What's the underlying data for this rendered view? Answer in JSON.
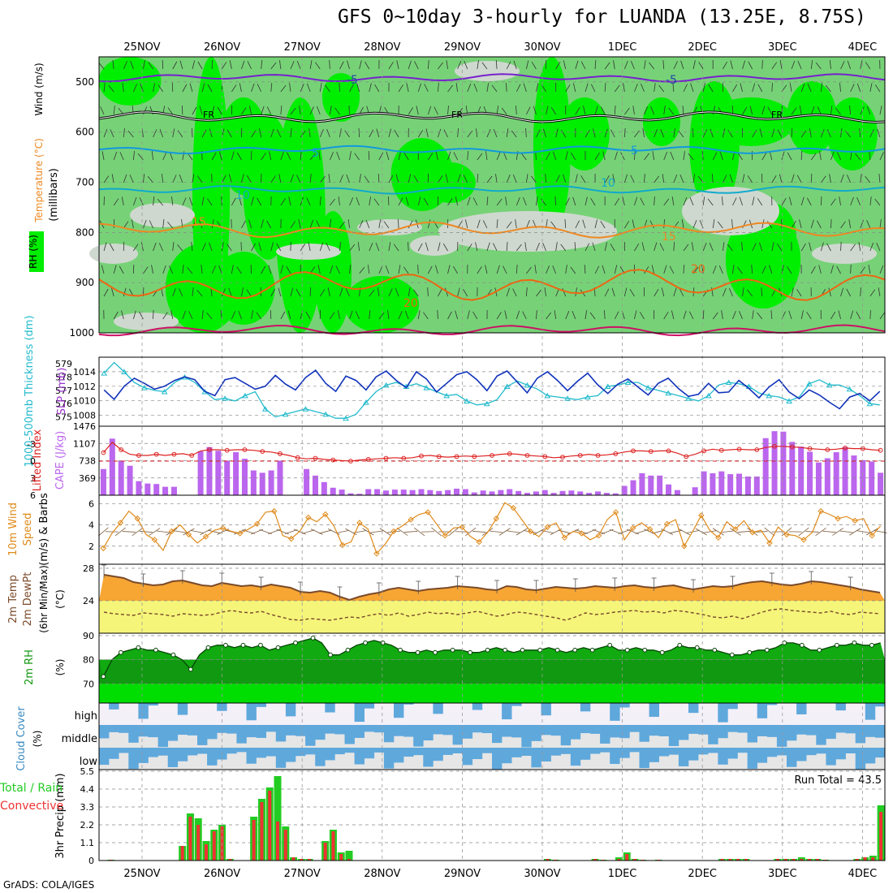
{
  "title": "GFS 0~10day 3-hourly for LUANDA (13.25E, 8.75S)",
  "credit": "GrADS: COLA/IGES",
  "dates": [
    "25NOV",
    "26NOV",
    "27NOV",
    "28NOV",
    "29NOV",
    "30NOV",
    "1DEC",
    "2DEC",
    "3DEC",
    "4DEC"
  ],
  "colors": {
    "rh_light": "#77d277",
    "rh_bright": "#00ee00",
    "rh_dark": "#33aa33",
    "rh_dry": "#cfd8cf",
    "grid": "#999999",
    "thickness": "#22bbcc",
    "slp": "#1133bb",
    "lifted": "#dd2222",
    "cape": "#bb66ee",
    "wind": "#e08a1a",
    "temp": "#f7a634",
    "dewpt": "#f5f57a",
    "rh2m": "#119911",
    "cloud": "#5fa8dc",
    "cloud_bg": "#e6e6e6",
    "precip_total": "#22cc22",
    "precip_conv": "#ee3333"
  },
  "chart_data": [
    {
      "type": "heatmap",
      "name": "upper_air",
      "ylabel": "(millibars)",
      "legend_labels": [
        "RH (%)",
        "Temperature (°C)",
        "Wind (m/s)"
      ],
      "y_ticks": [
        500,
        600,
        700,
        800,
        900,
        1000
      ],
      "ylim": [
        1000,
        450
      ],
      "contour_labels": [
        {
          "text": "-5",
          "level": "500"
        },
        {
          "text": "-5",
          "level": "500"
        },
        {
          "text": "FR",
          "level": "freezing"
        },
        {
          "text": "FR",
          "level": "freezing"
        },
        {
          "text": "FR",
          "level": "freezing"
        },
        {
          "text": "5",
          "level": "640"
        },
        {
          "text": "5",
          "level": "640"
        },
        {
          "text": "10",
          "level": "710"
        },
        {
          "text": "10",
          "level": "710"
        },
        {
          "text": "15",
          "level": "785"
        },
        {
          "text": "15",
          "level": "785"
        },
        {
          "text": "20",
          "level": "900"
        },
        {
          "text": "20",
          "level": "900"
        }
      ]
    },
    {
      "type": "line",
      "name": "thickness_slp",
      "ylabel_left": "1000-500mb Thickness (dm)",
      "ylabel_right": "SLP (mb)",
      "thickness_ticks": [
        575,
        576,
        577,
        578,
        579
      ],
      "slp_ticks": [
        1008,
        1010,
        1012,
        1014
      ],
      "series": [
        {
          "values": [
            578.3,
            579.1,
            578.4,
            577.6,
            577.2,
            577.0,
            576.9,
            577.6,
            578.0,
            577.6,
            576.9,
            576.3,
            576.4,
            576.2,
            576.6,
            576.9,
            575.6,
            575.0,
            575.2,
            575.4,
            575.6,
            575.4,
            575.2,
            574.9,
            574.9,
            575.2,
            576.1,
            576.9,
            577.4,
            577.6,
            577.3,
            577.5,
            577.2,
            576.9,
            576.6,
            576.7,
            576.2,
            575.9,
            576.0,
            576.3,
            577.3,
            577.7,
            577.4,
            577.1,
            576.6,
            576.5,
            576.4,
            576.3,
            576.5,
            576.6,
            577.3,
            577.4,
            577.6,
            577.6,
            577.2,
            577.0,
            576.8,
            576.6,
            576.4,
            576.2,
            576.6,
            577.4,
            577.6,
            577.5,
            577.3,
            576.8,
            576.6,
            576.5,
            576.2,
            576.5,
            577.5,
            577.8,
            577.4,
            577.4,
            577.1,
            576.6,
            576.0,
            575.9
          ]
        },
        {
          "values": [
            1011.5,
            1010.2,
            1012.0,
            1013.1,
            1012.4,
            1011.6,
            1012.0,
            1012.8,
            1013.3,
            1012.9,
            1011.3,
            1010.7,
            1012.9,
            1013.2,
            1012.4,
            1011.6,
            1012.0,
            1013.5,
            1012.3,
            1011.5,
            1013.2,
            1014.2,
            1012.4,
            1011.3,
            1013.4,
            1012.8,
            1011.5,
            1013.3,
            1014.1,
            1012.8,
            1011.8,
            1014.0,
            1013.0,
            1011.2,
            1012.4,
            1013.6,
            1014.0,
            1012.9,
            1011.4,
            1013.4,
            1014.1,
            1012.6,
            1011.1,
            1013.1,
            1014.0,
            1012.8,
            1011.4,
            1012.7,
            1013.8,
            1012.2,
            1011.0,
            1012.3,
            1013.0,
            1011.9,
            1010.8,
            1012.4,
            1013.1,
            1011.7,
            1010.6,
            1010.9,
            1012.4,
            1011.1,
            1011.2,
            1012.8,
            1011.7,
            1010.4,
            1011.9,
            1012.9,
            1011.2,
            1010.3,
            1011.5,
            1010.8,
            1009.8,
            1008.9,
            1010.5,
            1011.0,
            1010.0,
            1011.3
          ]
        }
      ]
    },
    {
      "type": "bar",
      "name": "lifted_cape",
      "ylabel_left": "Lifted Index",
      "ylabel_right": "CAPE (J/kg)",
      "li_ticks": [
        "-3",
        "0",
        "3",
        "6"
      ],
      "cape_ticks": [
        "369",
        "738",
        "1107",
        "1476"
      ],
      "cape": [
        560,
        1210,
        740,
        630,
        300,
        250,
        240,
        180,
        180,
        0,
        0,
        940,
        1030,
        950,
        740,
        920,
        780,
        530,
        480,
        530,
        740,
        0,
        0,
        560,
        420,
        280,
        160,
        120,
        40,
        30,
        130,
        130,
        100,
        120,
        120,
        110,
        130,
        110,
        90,
        110,
        140,
        130,
        60,
        100,
        80,
        110,
        130,
        90,
        50,
        80,
        110,
        50,
        90,
        100,
        80,
        50,
        80,
        50,
        40,
        200,
        320,
        470,
        420,
        420,
        230,
        110,
        0,
        170,
        510,
        470,
        510,
        450,
        460,
        400,
        400,
        1220,
        1370,
        1360,
        1140,
        1040,
        930,
        700,
        790,
        920,
        1030,
        850,
        750,
        720,
        480
      ],
      "lifted": [
        -1.5,
        -3.3,
        -2.0,
        -1.2,
        -1.0,
        -1.0,
        -1.2,
        -1.0,
        -1.2,
        -1.3,
        -1.0,
        -1.8,
        -2.0,
        -2.0,
        -1.9,
        -2.0,
        -2.0,
        -1.9,
        -1.7,
        -1.6,
        -1.3,
        -1.0,
        -0.6,
        -0.4,
        -0.5,
        -0.3,
        -0.2,
        -0.1,
        0.0,
        -0.2,
        -0.3,
        -0.4,
        -0.5,
        -0.6,
        -0.5,
        -0.6,
        -0.9,
        -1.0,
        -0.8,
        -0.7,
        -0.8,
        -0.9,
        -0.8,
        -0.9,
        -1.0,
        -1.2,
        -1.3,
        -1.2,
        -1.0,
        -0.9,
        -0.8,
        -0.6,
        -0.7,
        -0.9,
        -1.0,
        -1.2,
        -1.0,
        -1.1,
        -1.3,
        -1.6,
        -1.8,
        -1.8,
        -1.7,
        -1.8,
        -1.8,
        -1.4,
        -0.8,
        -1.2,
        -1.8,
        -2.1,
        -1.9,
        -2.0,
        -2.1,
        -2.0,
        -2.0,
        -2.4,
        -2.6,
        -2.6,
        -2.5,
        -2.4,
        -2.2,
        -2.1,
        -2.0,
        -2.1,
        -2.3,
        -2.2,
        -2.2,
        -2.0,
        -1.9
      ]
    },
    {
      "type": "line",
      "name": "wind10m",
      "ylabel": "10m Wind Speed (m/s) & Barbs",
      "y_ticks": [
        2,
        4,
        6
      ],
      "series": [
        {
          "values": [
            1.8,
            3.2,
            4.2,
            5.3,
            4.6,
            3.1,
            2.6,
            1.6,
            3.4,
            4.0,
            3.1,
            2.3,
            2.9,
            3.5,
            3.7,
            3.4,
            3.2,
            3.6,
            4.1,
            5.2,
            5.3,
            3.0,
            2.7,
            3.4,
            4.7,
            4.3,
            5.0,
            3.9,
            2.1,
            2.4,
            4.2,
            3.6,
            1.3,
            2.2,
            3.4,
            3.9,
            4.5,
            5.0,
            5.2,
            4.1,
            3.0,
            3.7,
            3.8,
            2.9,
            2.4,
            3.3,
            4.6,
            6.1,
            5.6,
            4.5,
            3.4,
            2.9,
            3.8,
            4.2,
            2.8,
            3.4,
            3.2,
            2.6,
            3.0,
            4.5,
            5.2,
            2.6,
            3.7,
            4.2,
            3.6,
            2.8,
            4.1,
            4.5,
            2.0,
            3.4,
            4.9,
            3.5,
            2.8,
            4.3,
            3.6,
            4.4,
            3.3,
            3.5,
            2.3,
            3.8,
            3.1,
            3.0,
            2.6,
            3.3,
            5.3,
            5.0,
            4.6,
            4.8,
            4.4,
            4.6,
            3.0,
            3.9
          ]
        }
      ]
    },
    {
      "type": "area",
      "name": "temp2m",
      "ylabel": "2m Temp 2m DewPt (6hr Min/Max) (°C)",
      "y_ticks": [
        24,
        28
      ],
      "series": [
        {
          "values": [
            27.2,
            27.0,
            26.8,
            26.3,
            26.1,
            25.9,
            26.0,
            26.4,
            26.5,
            26.2,
            25.9,
            25.8,
            26.2,
            26.0,
            25.8,
            25.9,
            25.7,
            26.0,
            25.8,
            25.6,
            25.1,
            25.0,
            25.2,
            25.0,
            24.5,
            24.1,
            24.5,
            24.8,
            25.0,
            25.4,
            25.6,
            25.4,
            25.2,
            25.4,
            25.5,
            25.6,
            25.8,
            25.7,
            25.6,
            25.4,
            25.3,
            25.8,
            25.7,
            25.4,
            25.3,
            25.5,
            25.7,
            25.6,
            25.5,
            25.6,
            25.8,
            25.7,
            25.6,
            25.8,
            25.9,
            25.7,
            25.6,
            25.8,
            25.9,
            25.6,
            25.4,
            25.6,
            25.8,
            25.7,
            25.8,
            26.1,
            26.3,
            26.4,
            26.2,
            26.0,
            25.9,
            26.1,
            26.4,
            26.3,
            26.1,
            25.9,
            25.7,
            25.4,
            25.2,
            25.0
          ]
        },
        {
          "values": [
            22.6,
            22.4,
            22.3,
            22.2,
            22.5,
            22.4,
            22.3,
            22.1,
            22.4,
            22.3,
            22.2,
            22.3,
            22.6,
            22.8,
            22.6,
            22.5,
            22.7,
            22.3,
            22.0,
            21.7,
            21.6,
            21.8,
            21.7,
            21.6,
            21.8,
            22.0,
            21.9,
            22.2,
            22.4,
            22.2,
            22.5,
            22.1,
            22.3,
            22.6,
            22.4,
            22.5,
            22.3,
            22.5,
            22.7,
            22.4,
            22.1,
            22.3,
            22.6,
            22.5,
            22.3,
            22.1,
            21.9,
            21.6,
            22.0,
            22.5,
            22.3,
            22.4,
            22.6,
            22.7,
            22.8,
            22.6,
            22.7,
            22.5,
            22.8,
            22.7,
            22.5,
            22.3,
            22.0,
            21.9,
            22.1,
            21.8,
            22.2,
            22.6,
            22.9,
            23.0,
            22.8,
            22.7,
            22.6,
            22.5,
            22.7,
            22.4,
            22.3,
            22.6,
            22.5,
            22.4
          ]
        }
      ]
    },
    {
      "type": "area",
      "name": "rh2m",
      "ylabel": "2m RH (%)",
      "y_ticks": [
        70,
        80,
        90
      ],
      "series": [
        {
          "values": [
            73,
            80,
            83,
            84,
            85,
            84,
            84,
            83,
            82,
            80,
            76,
            82,
            85,
            86,
            86,
            85,
            86,
            85,
            86,
            84,
            85,
            86,
            87,
            88,
            89,
            87,
            82,
            82,
            84,
            86,
            87,
            88,
            87,
            86,
            84,
            83,
            83,
            84,
            83,
            84,
            84,
            84,
            83,
            83,
            84,
            85,
            84,
            83,
            84,
            84,
            84,
            85,
            84,
            83,
            84,
            85,
            84,
            85,
            86,
            84,
            84,
            85,
            84,
            84,
            83,
            84,
            86,
            85,
            85,
            84,
            84,
            83,
            82,
            82,
            83,
            84,
            84,
            85,
            87,
            87,
            86,
            84,
            84,
            85,
            86,
            86,
            87,
            86,
            86,
            87
          ]
        }
      ]
    },
    {
      "type": "heatmap",
      "name": "cloud_cover",
      "ylabel": "Cloud Cover (%)",
      "row_labels": [
        "high",
        "middle",
        "low"
      ]
    },
    {
      "type": "bar",
      "name": "precip",
      "ylabel": "3hr Precip (mm)",
      "legend_labels": [
        "Total / Rain",
        "Convective"
      ],
      "annotation": "Run Total = 43.5",
      "y_ticks": [
        "0",
        "1.1",
        "2.2",
        "3.3",
        "4.4",
        "5.5"
      ],
      "series": [
        {
          "name": "Total / Rain",
          "values": [
            0,
            0.05,
            0,
            0,
            0,
            0,
            0,
            0,
            0,
            0,
            0.9,
            2.9,
            2.6,
            1.2,
            1.9,
            2.2,
            0.1,
            0,
            0,
            2.7,
            3.8,
            4.5,
            5.2,
            2.1,
            0.2,
            0.1,
            0.1,
            0,
            1.2,
            1.9,
            0.5,
            0.6,
            0,
            0,
            0,
            0,
            0,
            0,
            0,
            0,
            0,
            0,
            0,
            0,
            0,
            0,
            0,
            0,
            0,
            0,
            0,
            0,
            0,
            0,
            0,
            0,
            0.1,
            0.05,
            0,
            0,
            0,
            0,
            0.1,
            0.05,
            0,
            0.2,
            0.5,
            0.1,
            0.05,
            0,
            0.05,
            0,
            0,
            0,
            0,
            0,
            0,
            0,
            0.1,
            0.1,
            0.1,
            0.1,
            0,
            0,
            0,
            0.1,
            0.1,
            0.1,
            0.2,
            0.1,
            0.1,
            0.05,
            0,
            0,
            0,
            0.1,
            0.2,
            0.3,
            3.4
          ]
        },
        {
          "name": "Convective",
          "values": [
            0,
            0.05,
            0,
            0,
            0,
            0,
            0,
            0,
            0,
            0,
            0.9,
            2.7,
            2.2,
            1.0,
            1.8,
            2.1,
            0.1,
            0,
            0,
            2.5,
            3.6,
            4.3,
            2.4,
            1.9,
            0.2,
            0.1,
            0.1,
            0,
            1.1,
            1.8,
            0.4,
            0.1,
            0,
            0,
            0,
            0,
            0,
            0,
            0,
            0,
            0,
            0,
            0,
            0,
            0,
            0,
            0,
            0,
            0,
            0,
            0,
            0,
            0,
            0,
            0,
            0,
            0.1,
            0.05,
            0,
            0,
            0,
            0,
            0.1,
            0.05,
            0,
            0.1,
            0.4,
            0.1,
            0.05,
            0,
            0.05,
            0,
            0,
            0,
            0,
            0,
            0,
            0,
            0.1,
            0.1,
            0.1,
            0.1,
            0,
            0,
            0,
            0.1,
            0.1,
            0.1,
            0.1,
            0.1,
            0.1,
            0.05,
            0,
            0,
            0,
            0.1,
            0.2,
            0.2,
            3.0
          ]
        }
      ]
    }
  ]
}
